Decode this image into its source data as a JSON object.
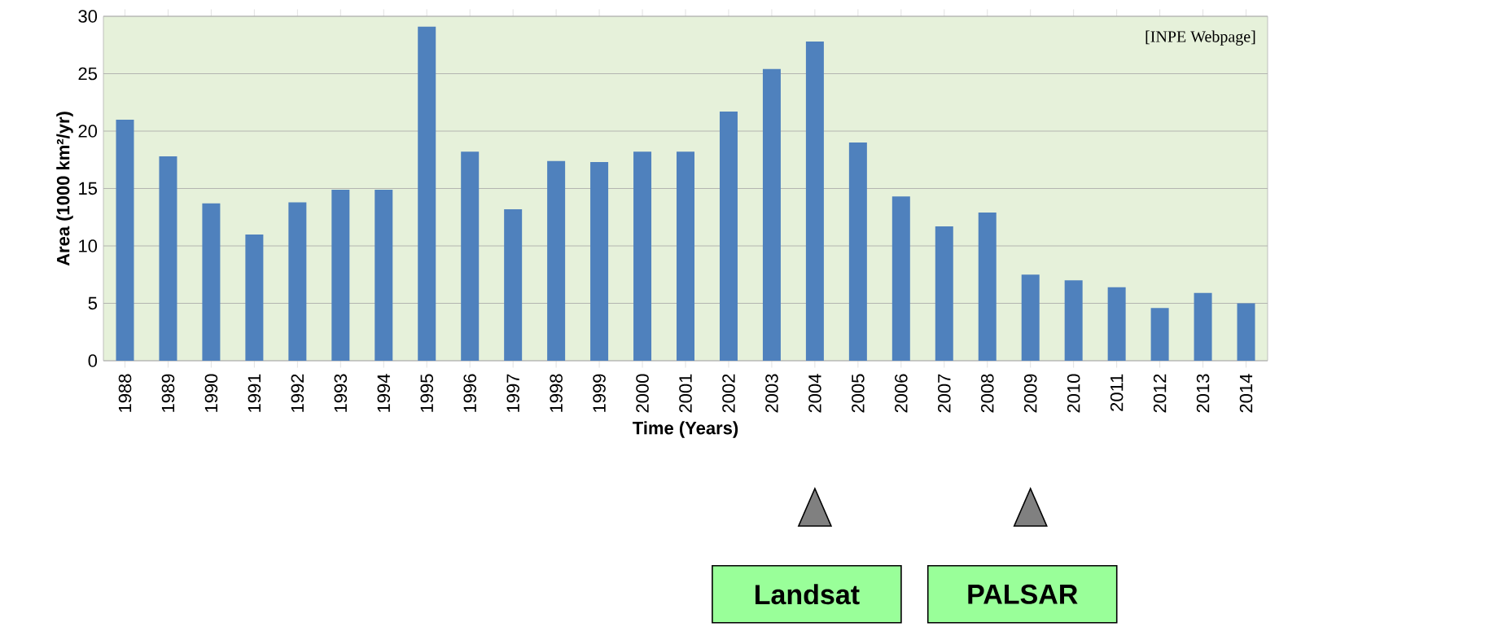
{
  "chart_data": {
    "type": "bar",
    "xlabel": "Time (Years)",
    "ylabel": "Area (1000 km²/yr)",
    "categories": [
      "1988",
      "1989",
      "1990",
      "1991",
      "1992",
      "1993",
      "1994",
      "1995",
      "1996",
      "1997",
      "1998",
      "1999",
      "2000",
      "2001",
      "2002",
      "2003",
      "2004",
      "2005",
      "2006",
      "2007",
      "2008",
      "2009",
      "2010",
      "2011",
      "2012",
      "2013",
      "2014"
    ],
    "values": [
      21.0,
      17.8,
      13.7,
      11.0,
      13.8,
      14.9,
      14.9,
      29.1,
      18.2,
      13.2,
      17.4,
      17.3,
      18.2,
      18.2,
      21.7,
      25.4,
      27.8,
      19.0,
      14.3,
      11.7,
      12.9,
      7.5,
      7.0,
      6.4,
      4.6,
      5.9,
      5.0
    ],
    "color": "#4f81bd",
    "ylim": [
      0,
      30
    ],
    "yticks": [
      0,
      5,
      10,
      15,
      20,
      25,
      30
    ],
    "grid": "y",
    "annotations": [
      "[INPE Webpage]",
      "Landsat",
      "PALSAR"
    ]
  }
}
